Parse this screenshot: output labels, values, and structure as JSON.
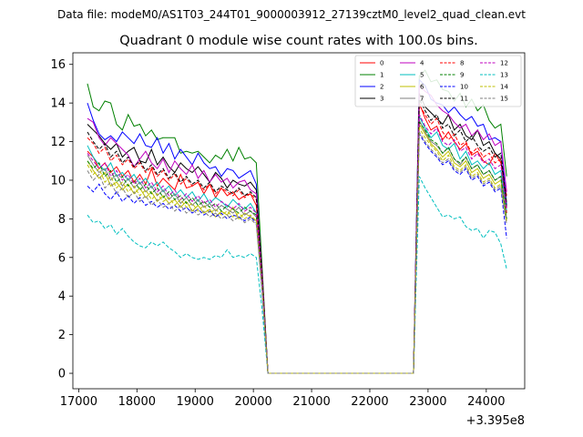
{
  "chart_data": {
    "type": "line",
    "suptitle": "Data file: modeM0/AS1T03_244T01_9000003912_27139cztM0_level2_quad_clean.evt",
    "title": "Quadrant 0 module wise count rates with 100.0s bins.",
    "xlabel": "",
    "ylabel": "",
    "x_offset_label": "+3.395e8",
    "xlim": [
      16900,
      24660
    ],
    "ylim": [
      -0.8,
      16.6
    ],
    "xticks": [
      17000,
      18000,
      19000,
      20000,
      21000,
      22000,
      23000,
      24000
    ],
    "yticks": [
      0,
      2,
      4,
      6,
      8,
      10,
      12,
      14,
      16
    ],
    "x": [
      17150,
      17250,
      17350,
      17450,
      17550,
      17650,
      17750,
      17850,
      17950,
      18050,
      18150,
      18250,
      18350,
      18450,
      18550,
      18650,
      18750,
      18850,
      18950,
      19050,
      19150,
      19250,
      19350,
      19450,
      19550,
      19650,
      19750,
      19850,
      19950,
      20050,
      20150,
      20250,
      20350,
      20450,
      20550,
      20650,
      20750,
      20850,
      20950,
      21050,
      21150,
      21250,
      21350,
      21450,
      21550,
      21650,
      21750,
      21850,
      21950,
      22050,
      22150,
      22250,
      22350,
      22450,
      22550,
      22650,
      22750,
      22850,
      22950,
      23050,
      23150,
      23250,
      23350,
      23450,
      23550,
      23650,
      23750,
      23850,
      23950,
      24050,
      24150,
      24250,
      24350
    ],
    "legend": {
      "position": "top-right",
      "ncol": 4
    },
    "series": [
      {
        "name": "0",
        "color": "#ff0000",
        "dash": "solid",
        "pre": [
          11.5,
          11.2,
          10.6,
          10.9,
          10.4,
          10.7,
          10.2,
          10.5,
          9.9,
          10.3,
          9.8,
          10.6,
          9.7,
          10.1,
          9.8,
          9.5,
          10.3,
          9.6,
          9.7,
          9.9,
          9.3,
          9.8,
          9.1,
          9.6,
          9.2,
          9.4,
          9.0,
          9.2,
          9.3,
          8.7,
          5.0
        ],
        "post": [
          14.0,
          13.2,
          12.6,
          12.8,
          12.1,
          12.5,
          12.0,
          11.6,
          11.9,
          11.3,
          11.5,
          11.0,
          10.8,
          11.4,
          10.9,
          9.2
        ]
      },
      {
        "name": "1",
        "color": "#008000",
        "dash": "solid",
        "pre": [
          15.0,
          13.8,
          13.6,
          14.1,
          14.0,
          12.9,
          12.6,
          13.4,
          12.8,
          12.9,
          12.3,
          12.6,
          12.1,
          12.2,
          12.2,
          12.2,
          11.4,
          11.5,
          11.4,
          11.5,
          11.2,
          10.9,
          11.3,
          11.1,
          11.6,
          11.0,
          11.7,
          11.1,
          11.2,
          10.9,
          5.5
        ],
        "post": [
          15.4,
          15.7,
          15.1,
          15.2,
          14.7,
          14.6,
          14.1,
          14.5,
          13.8,
          14.2,
          13.6,
          13.9,
          13.1,
          12.7,
          12.9,
          10.2
        ]
      },
      {
        "name": "2",
        "color": "#0000ff",
        "dash": "solid",
        "pre": [
          14.0,
          13.1,
          12.4,
          12.1,
          12.3,
          12.0,
          12.5,
          12.2,
          11.9,
          12.4,
          11.8,
          11.7,
          12.2,
          11.4,
          11.9,
          11.1,
          11.6,
          11.2,
          10.8,
          11.4,
          10.9,
          10.6,
          10.7,
          10.2,
          10.6,
          10.5,
          10.1,
          10.3,
          10.5,
          9.8,
          5.0
        ],
        "post": [
          15.2,
          14.9,
          14.2,
          14.0,
          13.9,
          13.5,
          13.8,
          13.4,
          13.1,
          13.3,
          12.8,
          12.9,
          12.1,
          12.2,
          12.0,
          8.7
        ]
      },
      {
        "name": "3",
        "color": "#000000",
        "dash": "solid",
        "pre": [
          12.9,
          12.6,
          12.3,
          11.9,
          11.6,
          11.9,
          11.2,
          11.5,
          11.7,
          11.0,
          10.9,
          11.6,
          10.8,
          11.2,
          10.7,
          10.4,
          10.9,
          10.6,
          10.4,
          10.7,
          10.3,
          9.9,
          10.4,
          10.1,
          9.6,
          10.0,
          9.8,
          9.7,
          9.9,
          9.5,
          5.2
        ],
        "post": [
          14.5,
          13.8,
          13.5,
          13.2,
          12.9,
          13.4,
          12.6,
          12.9,
          12.3,
          12.1,
          12.6,
          11.8,
          12.0,
          11.4,
          11.1,
          8.6
        ]
      },
      {
        "name": "4",
        "color": "#bf00bf",
        "dash": "solid",
        "pre": [
          13.2,
          13.0,
          12.2,
          11.8,
          12.2,
          11.9,
          11.6,
          11.3,
          10.7,
          11.1,
          11.5,
          10.9,
          10.6,
          11.1,
          10.4,
          11.0,
          10.6,
          10.3,
          10.8,
          10.1,
          10.5,
          9.9,
          10.3,
          9.9,
          10.1,
          9.6,
          9.9,
          10.0,
          9.5,
          9.3,
          5.1
        ],
        "post": [
          14.9,
          14.6,
          14.4,
          13.9,
          13.6,
          13.4,
          13.0,
          12.7,
          12.9,
          12.3,
          12.6,
          12.1,
          12.4,
          11.8,
          12.0,
          9.4
        ]
      },
      {
        "name": "5",
        "color": "#00bfbf",
        "dash": "solid",
        "pre": [
          11.8,
          11.2,
          10.8,
          10.5,
          10.9,
          10.2,
          10.4,
          10.0,
          10.3,
          9.8,
          10.1,
          9.6,
          9.9,
          9.4,
          9.7,
          9.2,
          9.5,
          9.1,
          9.4,
          8.9,
          9.3,
          8.8,
          9.1,
          8.9,
          8.6,
          9.0,
          8.7,
          8.5,
          8.8,
          8.3,
          4.6
        ],
        "post": [
          13.3,
          12.7,
          12.2,
          12.5,
          11.8,
          11.6,
          11.9,
          11.1,
          11.5,
          10.8,
          11.0,
          10.6,
          10.9,
          10.3,
          10.5,
          8.4
        ]
      },
      {
        "name": "6",
        "color": "#bfbf00",
        "dash": "solid",
        "pre": [
          11.0,
          10.5,
          10.1,
          10.4,
          9.7,
          9.9,
          9.5,
          9.8,
          9.3,
          9.6,
          9.1,
          9.4,
          8.9,
          9.2,
          8.8,
          9.0,
          8.6,
          8.9,
          8.4,
          8.7,
          8.3,
          8.5,
          8.1,
          8.4,
          8.2,
          8.6,
          8.0,
          8.3,
          8.1,
          7.9,
          4.4
        ],
        "post": [
          12.9,
          12.4,
          11.9,
          11.6,
          11.2,
          11.5,
          10.9,
          10.7,
          11.0,
          10.4,
          10.6,
          10.1,
          10.3,
          9.8,
          10.0,
          7.9
        ]
      },
      {
        "name": "7",
        "color": "#7f7f7f",
        "dash": "solid",
        "pre": [
          11.3,
          10.8,
          10.4,
          10.6,
          10.0,
          10.3,
          9.7,
          10.1,
          9.6,
          9.9,
          9.4,
          9.7,
          9.2,
          9.5,
          9.0,
          9.3,
          8.8,
          9.1,
          8.7,
          9.0,
          8.6,
          8.8,
          8.4,
          8.7,
          8.5,
          8.3,
          8.6,
          8.2,
          8.4,
          8.1,
          4.5
        ],
        "post": [
          13.1,
          12.5,
          12.0,
          11.8,
          11.4,
          11.7,
          11.1,
          10.8,
          11.2,
          10.6,
          10.8,
          10.3,
          10.5,
          10.0,
          10.2,
          8.0
        ]
      },
      {
        "name": "8",
        "color": "#ff0000",
        "dash": "dashed",
        "pre": [
          12.2,
          11.9,
          11.4,
          11.7,
          11.0,
          11.3,
          10.8,
          11.1,
          10.6,
          10.9,
          10.4,
          10.7,
          10.2,
          10.5,
          10.0,
          10.3,
          9.8,
          10.1,
          9.7,
          9.9,
          9.5,
          9.8,
          9.3,
          9.6,
          9.4,
          9.2,
          9.5,
          9.1,
          9.3,
          9.0,
          5.0
        ],
        "post": [
          13.9,
          13.4,
          12.9,
          13.2,
          12.5,
          12.1,
          12.4,
          11.8,
          12.0,
          11.4,
          11.7,
          11.2,
          11.4,
          10.9,
          11.1,
          8.3
        ]
      },
      {
        "name": "9",
        "color": "#008000",
        "dash": "dashed",
        "pre": [
          11.0,
          10.6,
          10.9,
          10.2,
          10.5,
          9.9,
          10.2,
          9.7,
          10.0,
          9.5,
          9.8,
          9.3,
          9.6,
          9.1,
          9.4,
          9.0,
          9.2,
          8.8,
          9.1,
          8.7,
          8.9,
          8.6,
          8.8,
          8.4,
          8.7,
          8.5,
          8.3,
          8.6,
          8.4,
          8.2,
          4.6
        ],
        "post": [
          13.0,
          12.6,
          12.1,
          11.9,
          11.4,
          11.7,
          11.1,
          10.9,
          11.2,
          10.6,
          10.8,
          10.3,
          10.5,
          10.0,
          10.2,
          8.0
        ]
      },
      {
        "name": "10",
        "color": "#0000ff",
        "dash": "dashed",
        "pre": [
          9.7,
          9.4,
          9.8,
          9.3,
          9.0,
          9.4,
          8.9,
          9.2,
          8.8,
          9.1,
          8.7,
          8.9,
          8.6,
          8.8,
          8.5,
          8.7,
          8.4,
          8.6,
          8.3,
          8.5,
          8.2,
          8.4,
          8.1,
          8.3,
          8.0,
          8.2,
          8.1,
          7.9,
          8.1,
          7.8,
          4.2
        ],
        "post": [
          12.4,
          11.9,
          11.5,
          11.2,
          10.8,
          11.0,
          10.5,
          10.3,
          10.6,
          10.0,
          10.2,
          9.7,
          9.9,
          9.4,
          9.6,
          7.0
        ]
      },
      {
        "name": "11",
        "color": "#000000",
        "dash": "dashed",
        "pre": [
          12.5,
          12.0,
          11.6,
          11.9,
          11.2,
          11.5,
          10.9,
          11.2,
          10.7,
          11.0,
          10.5,
          10.8,
          10.3,
          10.6,
          10.1,
          10.4,
          9.9,
          10.2,
          9.8,
          10.0,
          9.6,
          9.9,
          9.4,
          9.7,
          9.5,
          9.3,
          9.6,
          9.2,
          9.4,
          9.1,
          5.0
        ],
        "post": [
          14.2,
          13.6,
          13.1,
          13.4,
          12.7,
          12.9,
          12.3,
          12.6,
          12.0,
          12.3,
          11.8,
          11.5,
          11.7,
          11.2,
          11.4,
          8.8
        ]
      },
      {
        "name": "12",
        "color": "#bf00bf",
        "dash": "dashed",
        "pre": [
          11.4,
          11.0,
          10.6,
          10.9,
          10.2,
          10.5,
          10.0,
          10.3,
          9.8,
          10.1,
          9.6,
          9.9,
          9.4,
          9.7,
          9.2,
          9.5,
          9.0,
          9.3,
          8.9,
          9.2,
          8.8,
          9.0,
          8.6,
          8.9,
          8.7,
          8.5,
          8.8,
          8.4,
          8.6,
          8.3,
          4.7
        ],
        "post": [
          13.4,
          12.8,
          12.4,
          12.7,
          12.0,
          11.8,
          12.1,
          11.5,
          11.7,
          11.1,
          11.4,
          10.9,
          11.1,
          10.6,
          10.8,
          8.5
        ]
      },
      {
        "name": "13",
        "color": "#00bfbf",
        "dash": "dashed",
        "pre": [
          8.2,
          7.8,
          7.9,
          7.5,
          7.7,
          7.2,
          7.5,
          7.1,
          6.8,
          6.6,
          6.5,
          6.8,
          6.6,
          6.8,
          6.5,
          6.3,
          6.0,
          6.2,
          6.0,
          5.9,
          6.0,
          5.9,
          6.1,
          6.0,
          6.4,
          6.0,
          6.1,
          6.0,
          6.2,
          6.0,
          3.3
        ],
        "post": [
          10.2,
          9.6,
          9.1,
          8.6,
          8.1,
          8.2,
          8.0,
          8.1,
          7.6,
          7.4,
          7.5,
          7.0,
          7.4,
          7.3,
          6.7,
          5.4
        ]
      },
      {
        "name": "14",
        "color": "#bfbf00",
        "dash": "dashed",
        "pre": [
          10.8,
          10.3,
          10.6,
          9.9,
          10.2,
          9.6,
          9.9,
          9.4,
          9.7,
          9.2,
          9.5,
          9.0,
          9.3,
          8.9,
          9.1,
          8.7,
          9.0,
          8.6,
          8.8,
          8.4,
          8.7,
          8.3,
          8.5,
          8.2,
          8.4,
          8.1,
          8.3,
          8.0,
          8.2,
          7.9,
          4.4
        ],
        "post": [
          12.7,
          12.2,
          11.8,
          11.5,
          11.0,
          11.3,
          10.7,
          10.5,
          10.8,
          10.2,
          10.4,
          9.9,
          10.1,
          9.6,
          9.8,
          7.8
        ]
      },
      {
        "name": "15",
        "color": "#7f7f7f",
        "dash": "dashed",
        "pre": [
          10.5,
          10.0,
          10.3,
          9.6,
          9.9,
          9.3,
          9.6,
          9.1,
          9.4,
          8.9,
          9.2,
          8.7,
          9.0,
          8.6,
          8.8,
          8.4,
          8.7,
          8.3,
          8.5,
          8.2,
          8.4,
          8.1,
          8.3,
          8.0,
          8.2,
          7.9,
          8.1,
          7.8,
          8.0,
          7.7,
          4.3
        ],
        "post": [
          12.5,
          12.0,
          11.6,
          11.3,
          10.9,
          11.1,
          10.6,
          10.4,
          10.7,
          10.1,
          10.3,
          9.8,
          10.0,
          9.5,
          9.7,
          7.7
        ]
      }
    ]
  }
}
